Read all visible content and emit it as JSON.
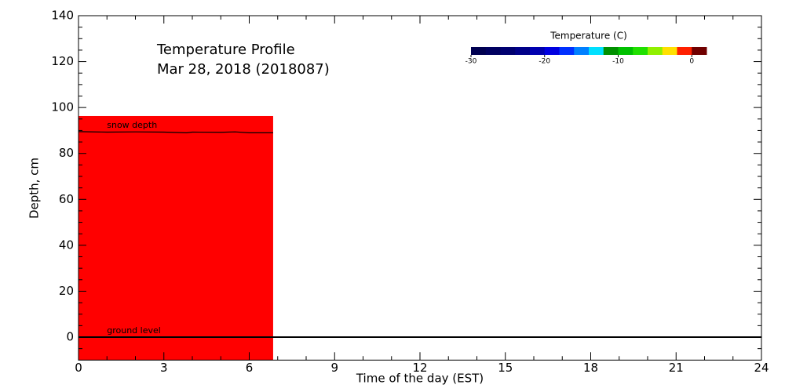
{
  "chart_data": {
    "type": "profile",
    "title": [
      "Temperature Profile",
      "Mar 28, 2018 (2018087)"
    ],
    "xlabel": "Time of the day (EST)",
    "ylabel": "Depth, cm",
    "xlim": [
      0,
      24
    ],
    "ylim": [
      -10,
      140
    ],
    "xticks": [
      0,
      3,
      6,
      9,
      12,
      15,
      18,
      21,
      24
    ],
    "yticks": [
      0,
      20,
      40,
      60,
      80,
      100,
      120,
      140
    ],
    "xminorticks": [
      1,
      2,
      4,
      5,
      7,
      8,
      10,
      11,
      13,
      14,
      16,
      17,
      19,
      20,
      22,
      23
    ],
    "yminorticks": [
      -5,
      5,
      10,
      15,
      25,
      30,
      35,
      45,
      50,
      55,
      65,
      70,
      75,
      85,
      90,
      95,
      105,
      110,
      115,
      125,
      130,
      135
    ],
    "field": {
      "x": [
        0,
        6.84
      ],
      "top": 96.3,
      "color": "#ff0000"
    },
    "series": [
      {
        "name": "snow depth",
        "color": "#000000",
        "x": [
          0,
          1,
          2,
          3,
          3.8,
          4,
          5,
          5.5,
          6,
          6.84
        ],
        "values": [
          89.5,
          89.3,
          89.4,
          89.3,
          89.0,
          89.3,
          89.2,
          89.4,
          89.0,
          89.0
        ]
      },
      {
        "name": "ground level",
        "color": "#000000",
        "x": [
          0,
          24
        ],
        "values": [
          0,
          0
        ]
      }
    ],
    "colorbar": {
      "title": "Temperature (C)",
      "lim": [
        -30,
        2
      ],
      "ticks": [
        -30,
        -20,
        -10,
        0
      ],
      "colors": [
        "#000050",
        "#000060",
        "#000070",
        "#000088",
        "#0000b0",
        "#0000e0",
        "#0030ff",
        "#0080ff",
        "#00e0ff",
        "#009000",
        "#00c000",
        "#20e000",
        "#90f000",
        "#ffe000",
        "#ff2000",
        "#700000"
      ]
    }
  }
}
